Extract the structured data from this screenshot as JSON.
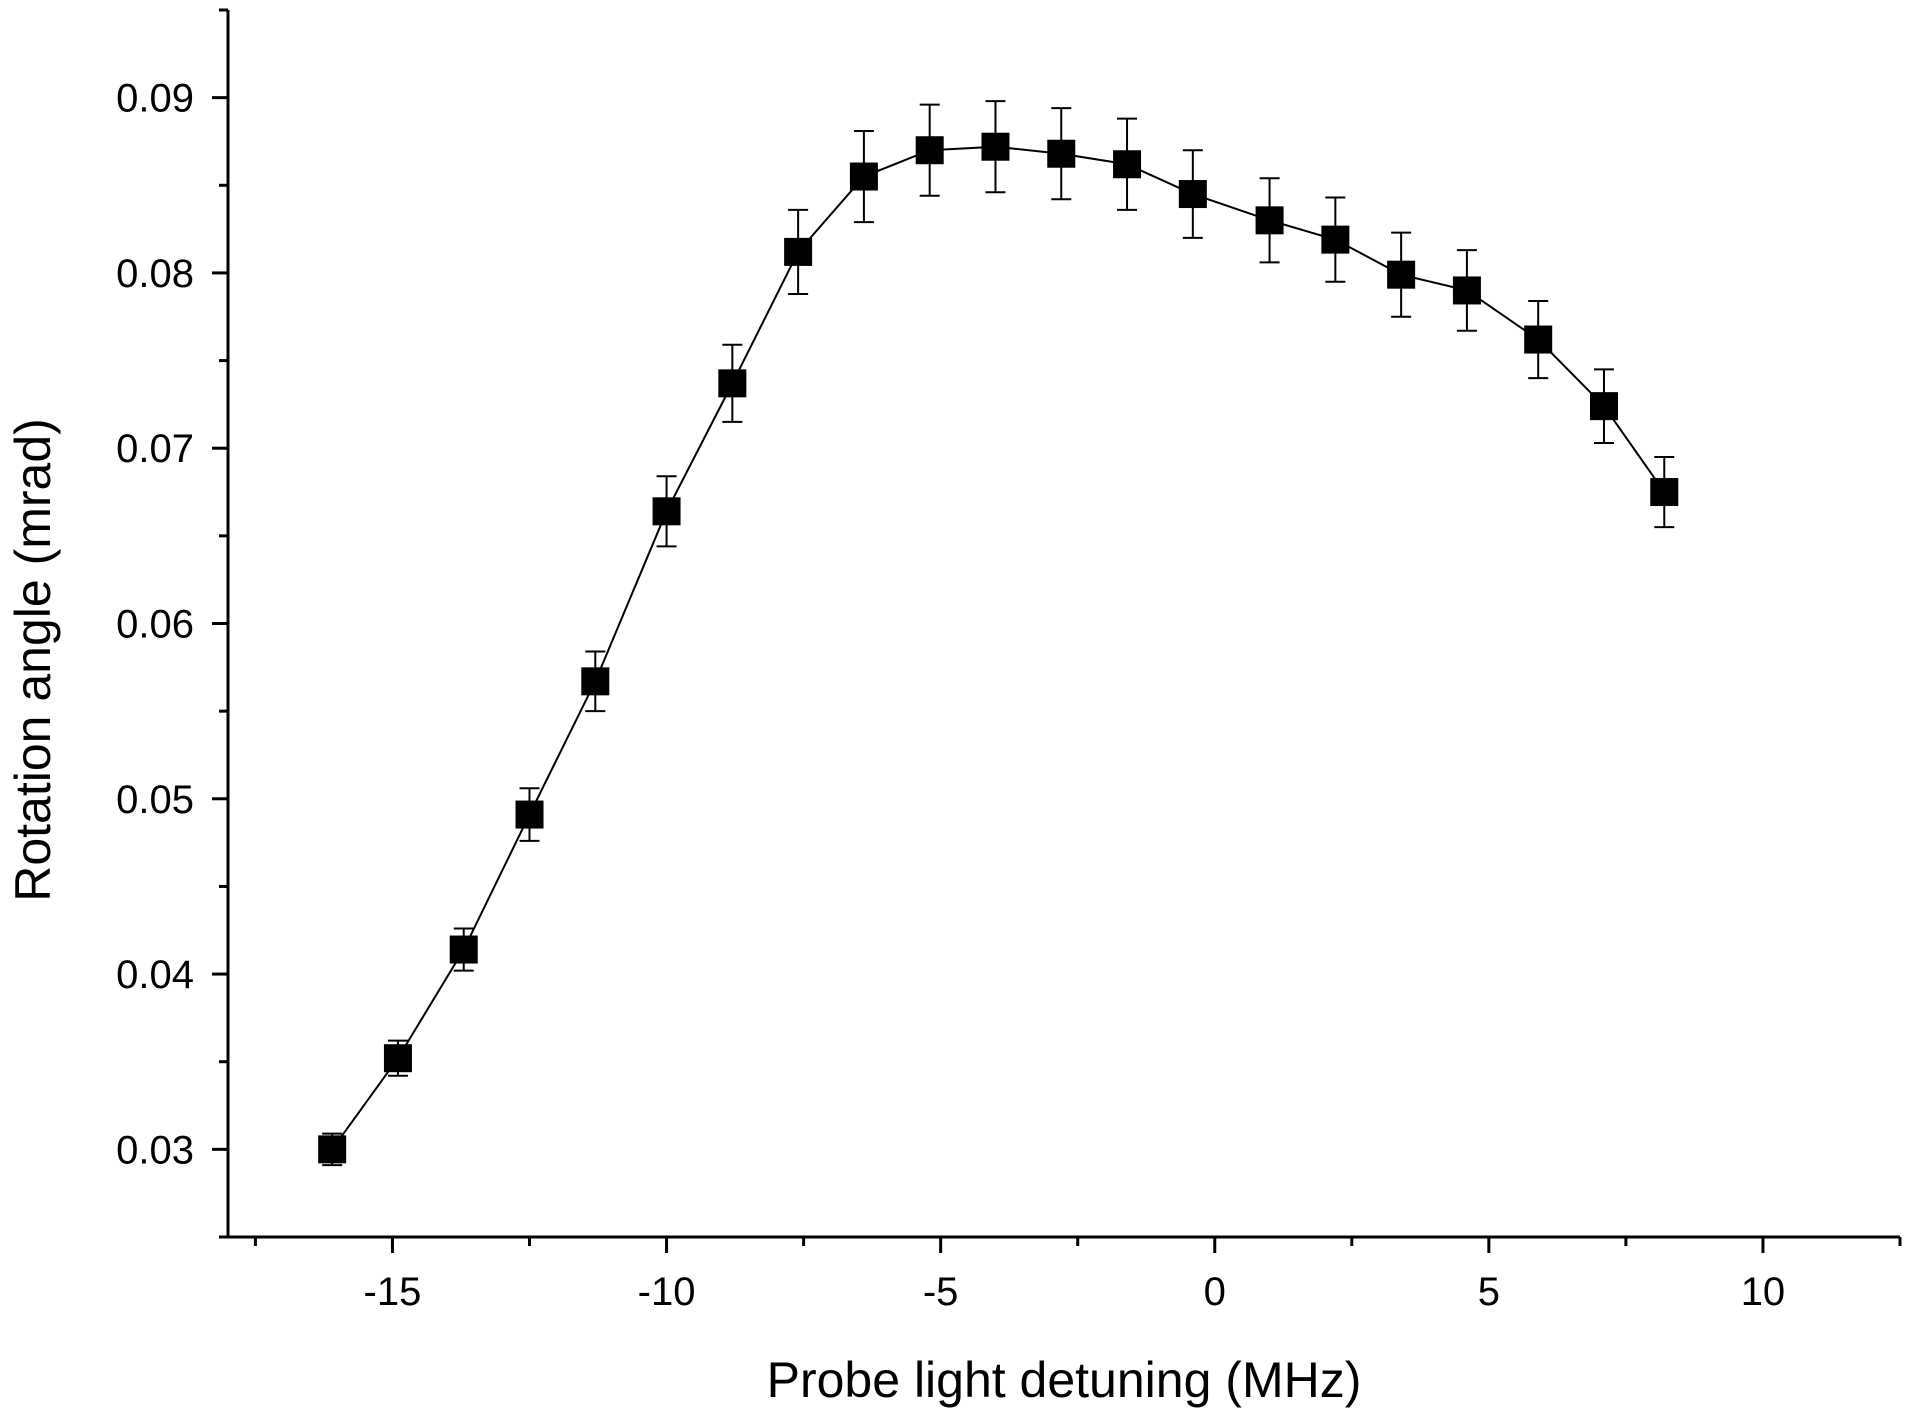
{
  "chart_data": {
    "type": "scatter",
    "xlabel": "Probe light detuning (MHz)",
    "ylabel": "Rotation angle (mrad)",
    "xlim": [
      -18,
      12.5
    ],
    "ylim": [
      0.025,
      0.095
    ],
    "xticks": [
      -15,
      -10,
      -5,
      0,
      5,
      10
    ],
    "xtick_labels": [
      "-15",
      "-10",
      "-5",
      "0",
      "5",
      "10"
    ],
    "yticks": [
      0.03,
      0.04,
      0.05,
      0.06,
      0.07,
      0.08,
      0.09
    ],
    "ytick_labels": [
      "0.03",
      "0.04",
      "0.05",
      "0.06",
      "0.07",
      "0.08",
      "0.09"
    ],
    "grid": false,
    "legend": false,
    "marker": "square",
    "connected": true,
    "color": "#000000",
    "series": [
      {
        "x": [
          -16.1,
          -14.9,
          -13.7,
          -12.5,
          -11.3,
          -10.0,
          -8.8,
          -7.6,
          -6.4,
          -5.2,
          -4.0,
          -2.8,
          -1.6,
          -0.4,
          1.0,
          2.2,
          3.4,
          4.6,
          5.9,
          7.1,
          8.2
        ],
        "y": [
          0.03,
          0.0352,
          0.0414,
          0.0491,
          0.0567,
          0.0664,
          0.0737,
          0.0812,
          0.0855,
          0.087,
          0.0872,
          0.0868,
          0.0862,
          0.0845,
          0.083,
          0.0819,
          0.0799,
          0.079,
          0.0762,
          0.0724,
          0.0675
        ],
        "yerr": [
          0.0009,
          0.001,
          0.0012,
          0.0015,
          0.0017,
          0.002,
          0.0022,
          0.0024,
          0.0026,
          0.0026,
          0.0026,
          0.0026,
          0.0026,
          0.0025,
          0.0024,
          0.0024,
          0.0024,
          0.0023,
          0.0022,
          0.0021,
          0.002
        ]
      }
    ]
  }
}
